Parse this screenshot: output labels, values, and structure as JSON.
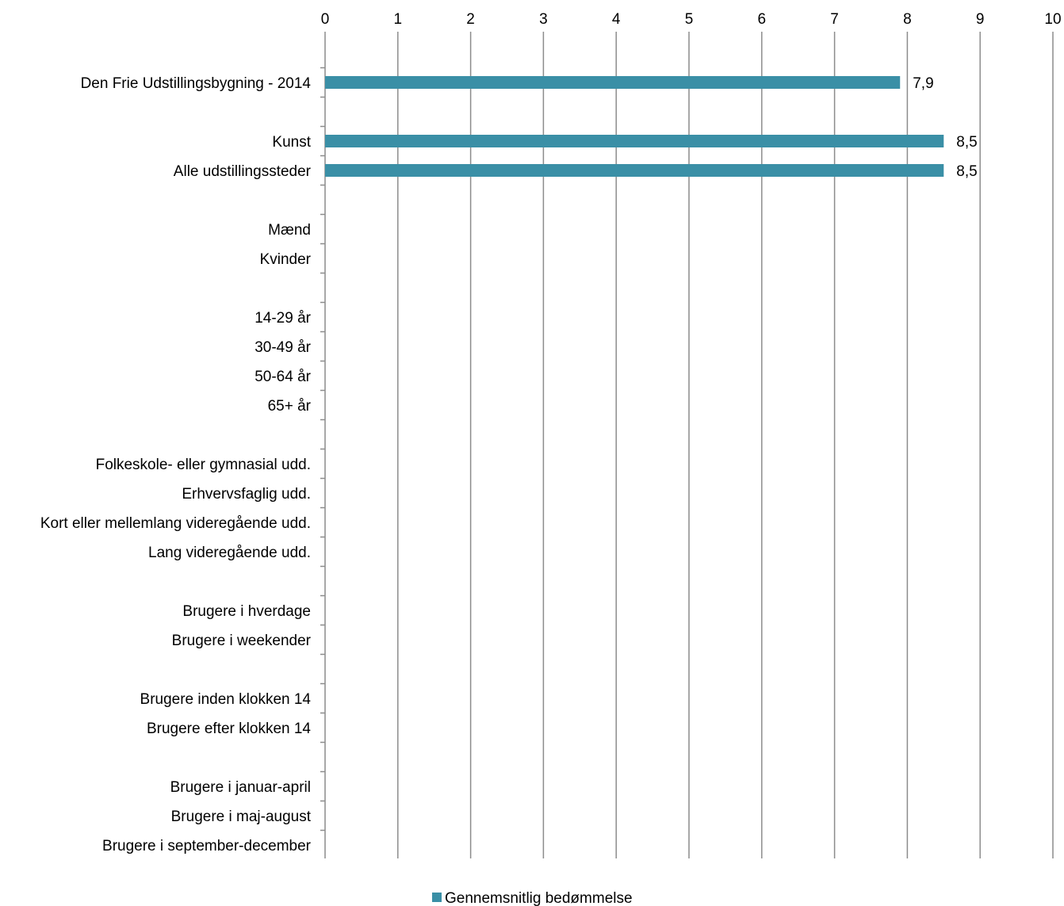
{
  "chart_data": {
    "type": "bar",
    "orientation": "horizontal",
    "title": "",
    "xlabel": "",
    "ylabel": "",
    "xlim": [
      0,
      10
    ],
    "x_ticks": [
      "0",
      "1",
      "2",
      "3",
      "4",
      "5",
      "6",
      "7",
      "8",
      "9",
      "10"
    ],
    "grid": "vertical",
    "legend_position": "bottom",
    "bar_color": "#3a8fa6",
    "series": [
      {
        "name": "Gennemsnitlig bedømmelse",
        "values": [
          7.9,
          8.5,
          8.5,
          null,
          null,
          null,
          null,
          null,
          null,
          null,
          null,
          null,
          null,
          null,
          null,
          null,
          null,
          null,
          null,
          null
        ],
        "data_labels": [
          "7,9",
          "8,5",
          "8,5",
          "",
          "",
          "",
          "",
          "",
          "",
          "",
          "",
          "",
          "",
          "",
          "",
          "",
          "",
          "",
          "",
          ""
        ]
      }
    ],
    "categories": [
      "Den Frie Udstillingsbygning - 2014",
      "Kunst",
      "Alle udstillingssteder",
      "Mænd",
      "Kvinder",
      "14-29 år",
      "30-49 år",
      "50-64 år",
      "65+ år",
      "Folkeskole- eller gymnasial udd.",
      "Erhvervsfaglig udd.",
      "Kort eller mellemlang videregående udd.",
      "Lang videregående udd.",
      "Brugere i hverdage",
      "Brugere i weekender",
      "Brugere inden klokken 14",
      "Brugere efter klokken 14",
      "Brugere i januar-april",
      "Brugere i maj-august",
      "Brugere i september-december"
    ],
    "category_groups": [
      [
        0
      ],
      [
        1,
        2
      ],
      [
        3,
        4
      ],
      [
        5,
        6,
        7,
        8
      ],
      [
        9,
        10,
        11,
        12
      ],
      [
        13,
        14
      ],
      [
        15,
        16
      ],
      [
        17,
        18,
        19
      ]
    ]
  }
}
